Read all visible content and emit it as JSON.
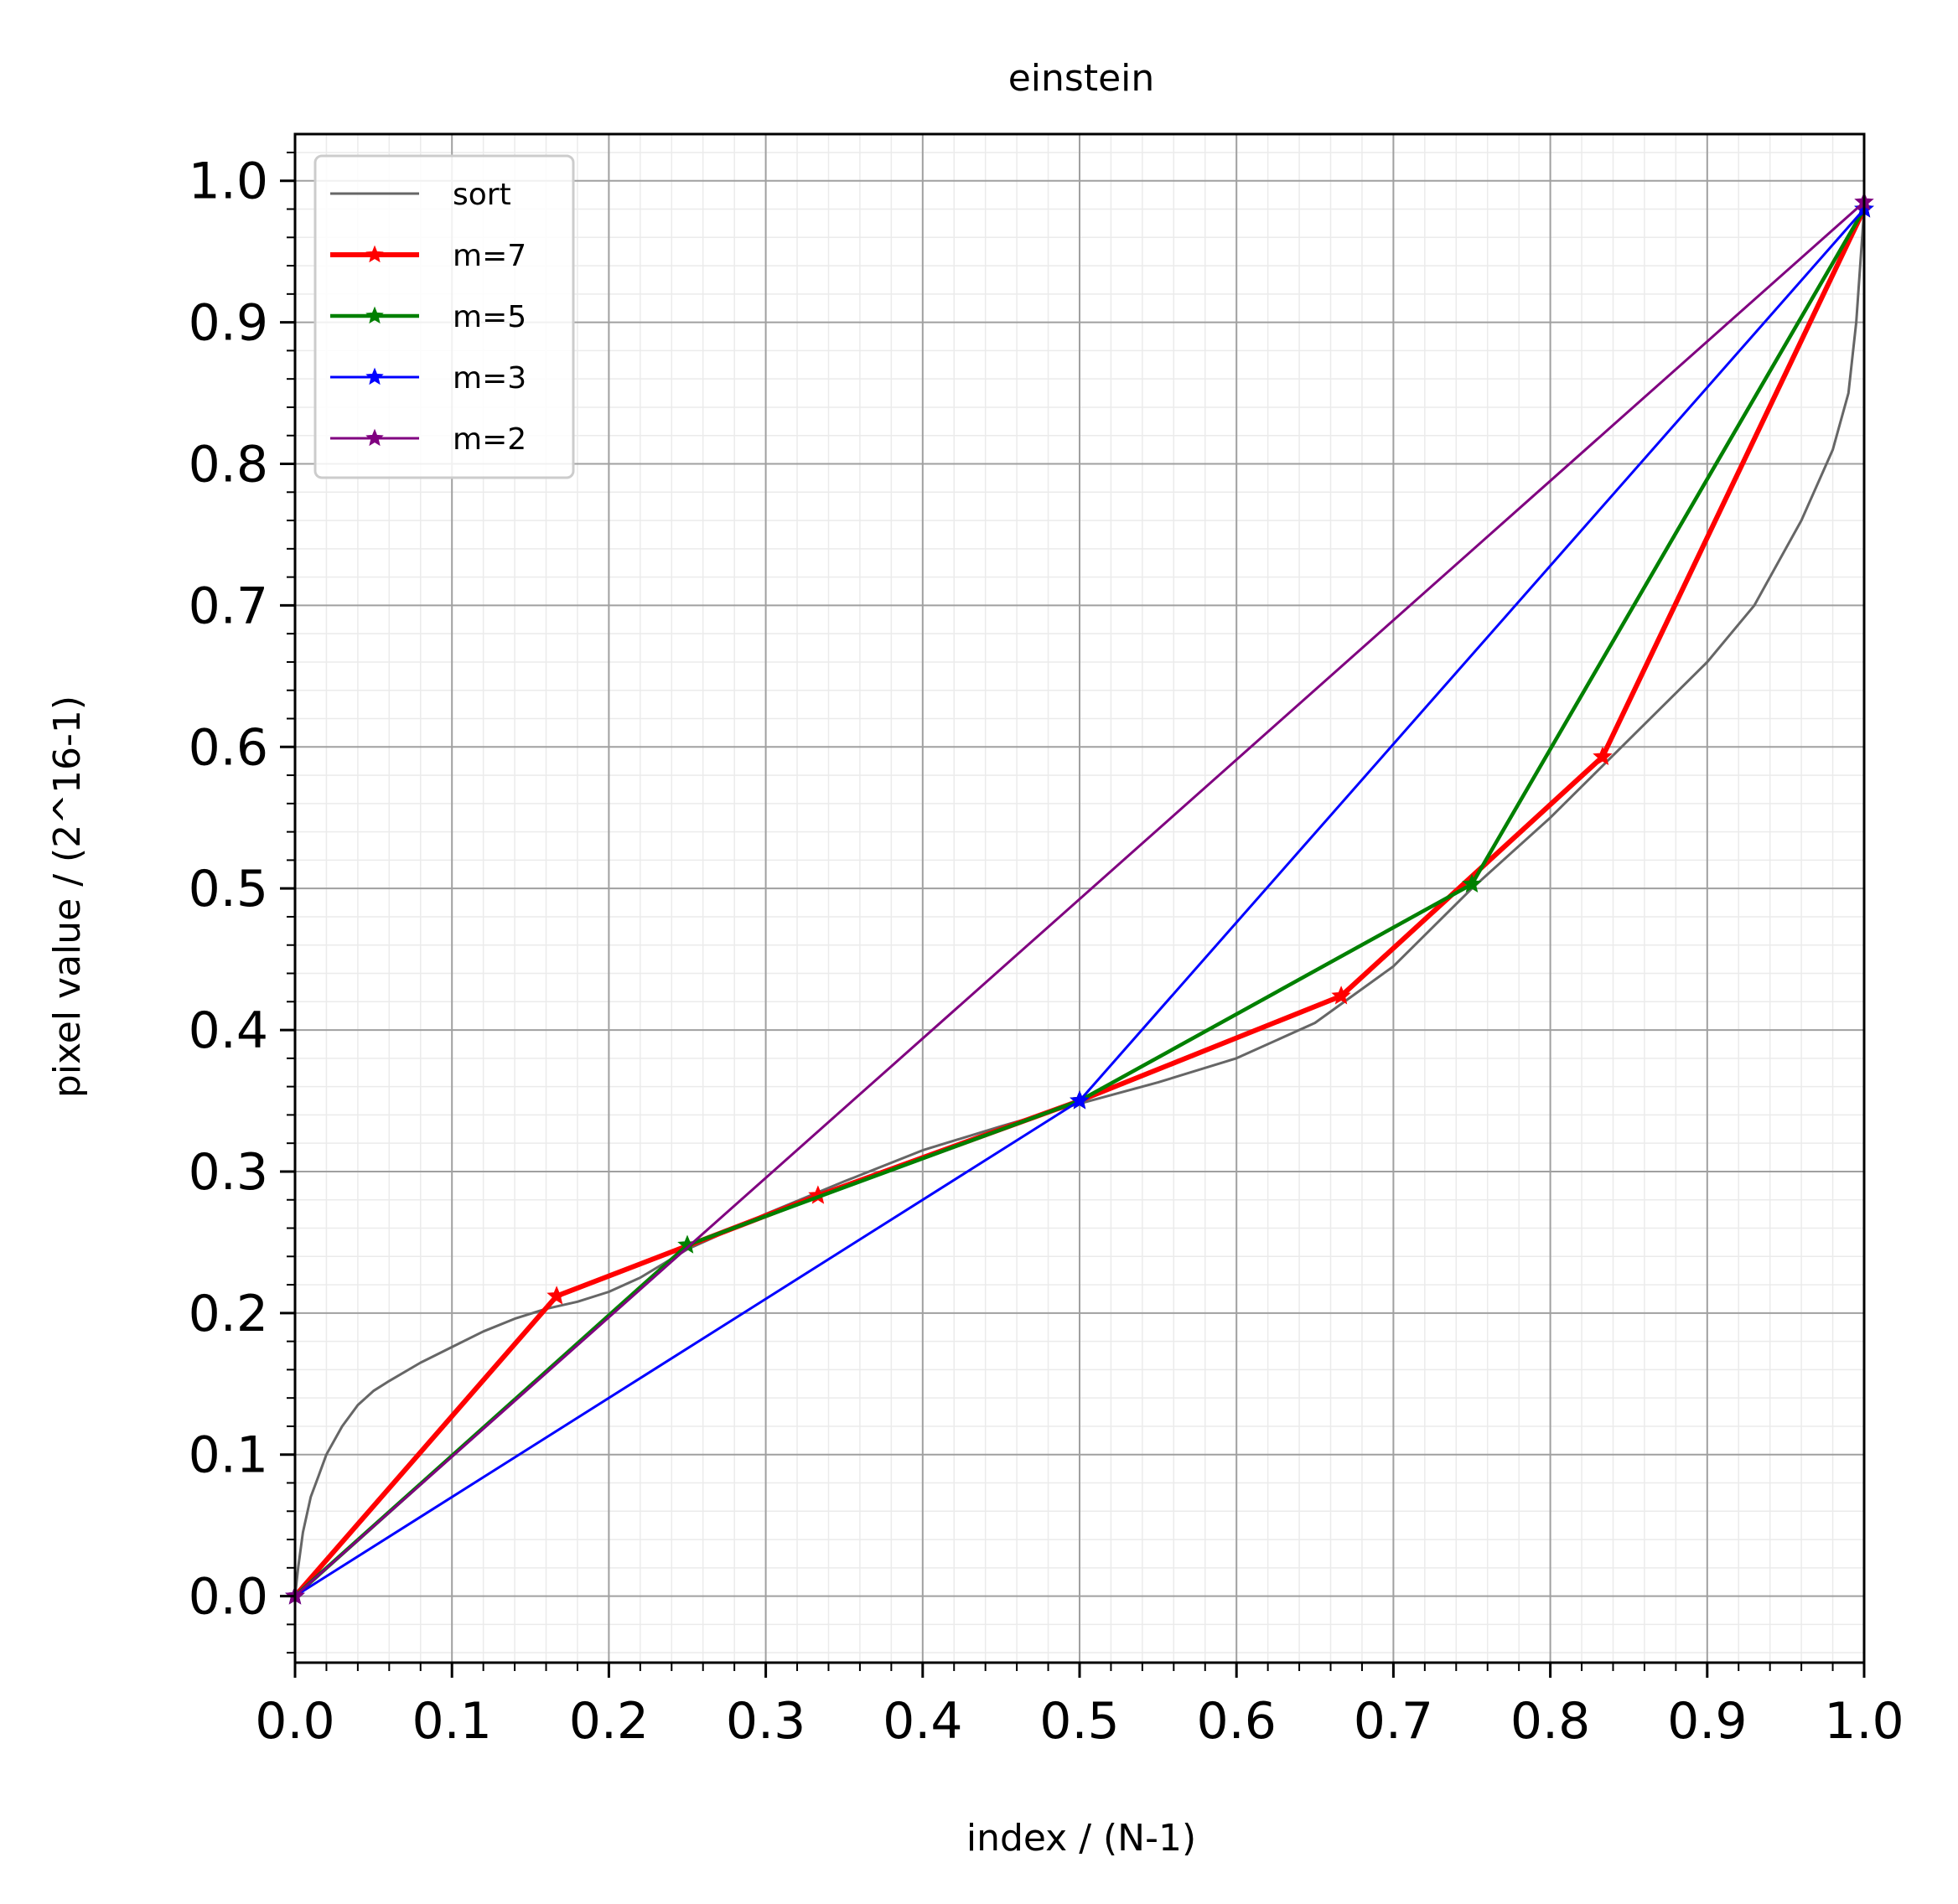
{
  "chart_data": {
    "type": "line",
    "title": "einstein",
    "xlabel": "index / (N-1)",
    "ylabel": "pixel value / (2^16-1)",
    "xlim": [
      0.0,
      1.0
    ],
    "ylim": [
      -0.047,
      1.033
    ],
    "xticks": [
      "0.0",
      "0.1",
      "0.2",
      "0.3",
      "0.4",
      "0.5",
      "0.6",
      "0.7",
      "0.8",
      "0.9",
      "1.0"
    ],
    "yticks": [
      "0.0",
      "0.1",
      "0.2",
      "0.3",
      "0.4",
      "0.5",
      "0.6",
      "0.7",
      "0.8",
      "0.9",
      "1.0"
    ],
    "grid": "major and minor",
    "legend_position": "upper-left",
    "series": [
      {
        "name": "sort",
        "color": "#666666",
        "marker": "none",
        "x": [
          0.0,
          0.002,
          0.005,
          0.01,
          0.015,
          0.02,
          0.03,
          0.04,
          0.05,
          0.06,
          0.08,
          0.1,
          0.12,
          0.14,
          0.16,
          0.18,
          0.2,
          0.22,
          0.25,
          0.3,
          0.35,
          0.4,
          0.45,
          0.5,
          0.55,
          0.6,
          0.65,
          0.7,
          0.75,
          0.8,
          0.85,
          0.9,
          0.93,
          0.96,
          0.98,
          0.99,
          0.995,
          1.0
        ],
        "y": [
          0.0,
          0.02,
          0.045,
          0.07,
          0.085,
          0.1,
          0.12,
          0.135,
          0.145,
          0.152,
          0.165,
          0.176,
          0.187,
          0.196,
          0.203,
          0.208,
          0.215,
          0.225,
          0.245,
          0.27,
          0.293,
          0.315,
          0.332,
          0.348,
          0.363,
          0.38,
          0.405,
          0.445,
          0.5,
          0.55,
          0.605,
          0.66,
          0.7,
          0.76,
          0.81,
          0.85,
          0.9,
          0.98
        ]
      },
      {
        "name": "m=7",
        "color": "#ff0000",
        "marker": "star",
        "x": [
          0.0,
          0.1667,
          0.3333,
          0.5,
          0.6667,
          0.8333,
          1.0
        ],
        "y": [
          0.0,
          0.212,
          0.283,
          0.35,
          0.424,
          0.593,
          0.98
        ]
      },
      {
        "name": "m=5",
        "color": "#008000",
        "marker": "star",
        "x": [
          0.0,
          0.25,
          0.5,
          0.75,
          1.0
        ],
        "y": [
          0.0,
          0.248,
          0.35,
          0.503,
          0.98
        ]
      },
      {
        "name": "m=3",
        "color": "#0000ff",
        "marker": "star",
        "x": [
          0.0,
          0.5,
          1.0
        ],
        "y": [
          0.0,
          0.35,
          0.98
        ]
      },
      {
        "name": "m=2",
        "color": "#800080",
        "marker": "star",
        "x": [
          0.0,
          1.0
        ],
        "y": [
          0.0,
          0.985
        ]
      }
    ]
  }
}
